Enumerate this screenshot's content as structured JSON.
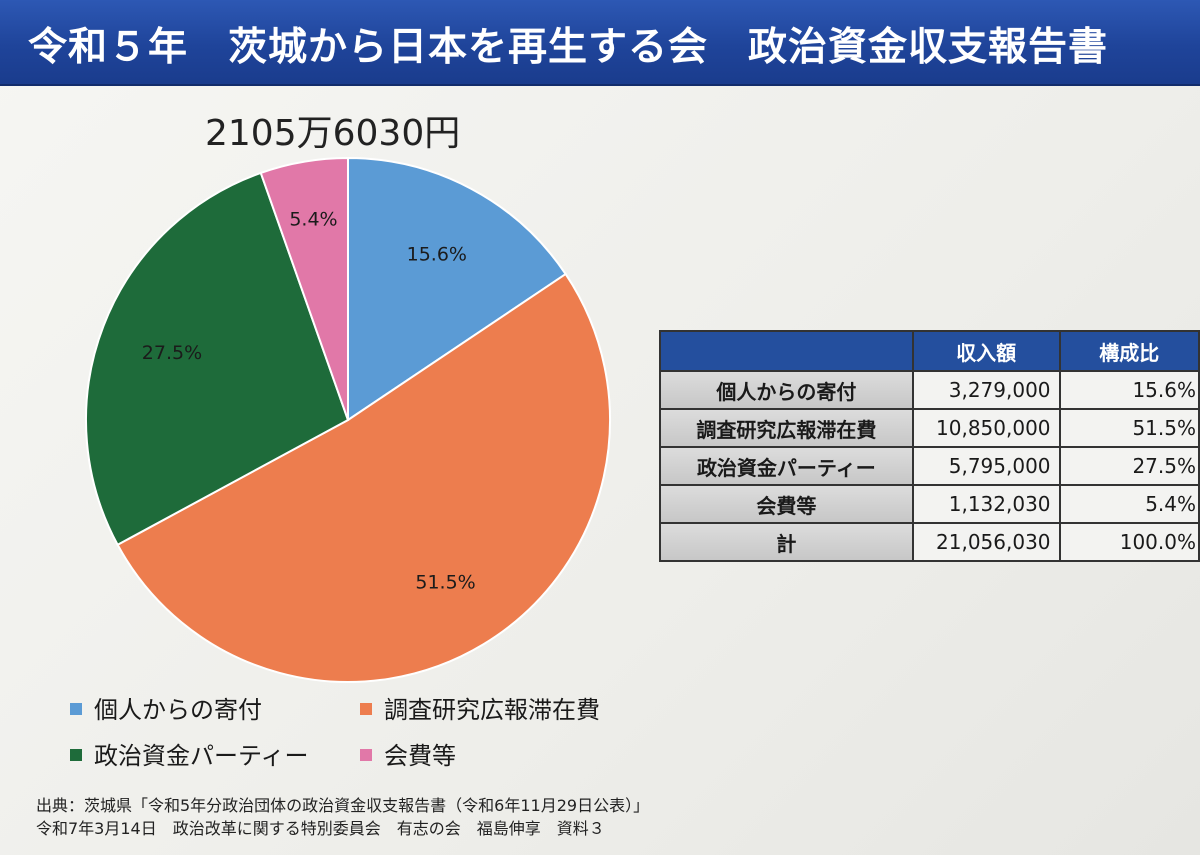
{
  "header": {
    "title": "令和５年　茨城から日本を再生する会　政治資金収支報告書"
  },
  "total_amount": "2105万6030円",
  "chart_data": {
    "type": "pie",
    "title": "",
    "categories": [
      "個人からの寄付",
      "調査研究広報滞在費",
      "政治資金パーティー",
      "会費等"
    ],
    "values": [
      15.6,
      51.5,
      27.5,
      5.4
    ],
    "labels": [
      "15.6%",
      "51.5%",
      "27.5%",
      "5.4%"
    ],
    "colors": [
      "#5b9bd5",
      "#ed7d4e",
      "#1e6b3a",
      "#e178a8"
    ],
    "start": "12 o'clock",
    "direction": "clockwise",
    "legend_position": "bottom"
  },
  "table": {
    "columns": [
      "",
      "収入額",
      "構成比"
    ],
    "rows": [
      {
        "label": "個人からの寄付",
        "amount": "3,279,000",
        "ratio": "15.6%"
      },
      {
        "label": "調査研究広報滞在費",
        "amount": "10,850,000",
        "ratio": "51.5%"
      },
      {
        "label": "政治資金パーティー",
        "amount": "5,795,000",
        "ratio": "27.5%"
      },
      {
        "label": "会費等",
        "amount": "1,132,030",
        "ratio": "5.4%"
      },
      {
        "label": "計",
        "amount": "21,056,030",
        "ratio": "100.0%"
      }
    ]
  },
  "source": {
    "line1": "出典：茨城県「令和5年分政治団体の政治資金収支報告書（令和6年11月29日公表）」",
    "line2": "令和7年3月14日　政治改革に関する特別委員会　有志の会　福島伸享　資料３"
  }
}
